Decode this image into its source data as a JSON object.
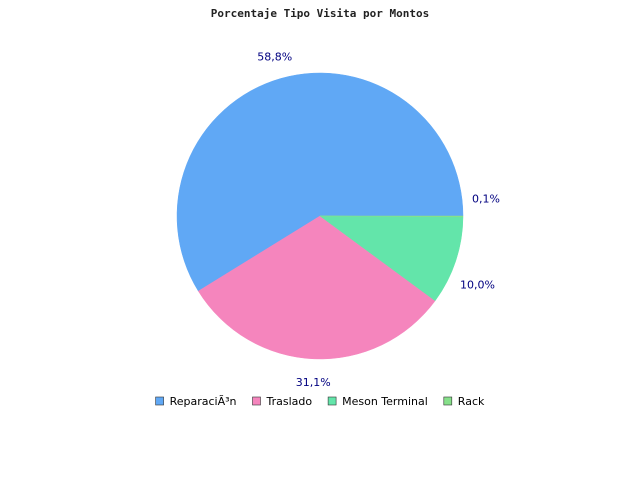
{
  "chart_data": {
    "type": "pie",
    "title": "Porcentaje Tipo Visita por Montos",
    "slices": [
      {
        "name": "ReparaciÃ³n",
        "value": 58.8,
        "label": "58,8%",
        "color": "#60a8f5"
      },
      {
        "name": "Traslado",
        "value": 31.1,
        "label": "31,1%",
        "color": "#f585bd"
      },
      {
        "name": "Meson Terminal",
        "value": 10.0,
        "label": "10,0%",
        "color": "#63e5aa"
      },
      {
        "name": "Rack",
        "value": 0.1,
        "label": "0,1%",
        "color": "#86e08a"
      }
    ],
    "legend": {
      "placement": "bottom",
      "items": [
        {
          "name": "ReparaciÃ³n",
          "color": "#60a8f5"
        },
        {
          "name": "Traslado",
          "color": "#f585bd"
        },
        {
          "name": "Meson Terminal",
          "color": "#63e5aa"
        },
        {
          "name": "Rack",
          "color": "#86e08a"
        }
      ]
    }
  }
}
